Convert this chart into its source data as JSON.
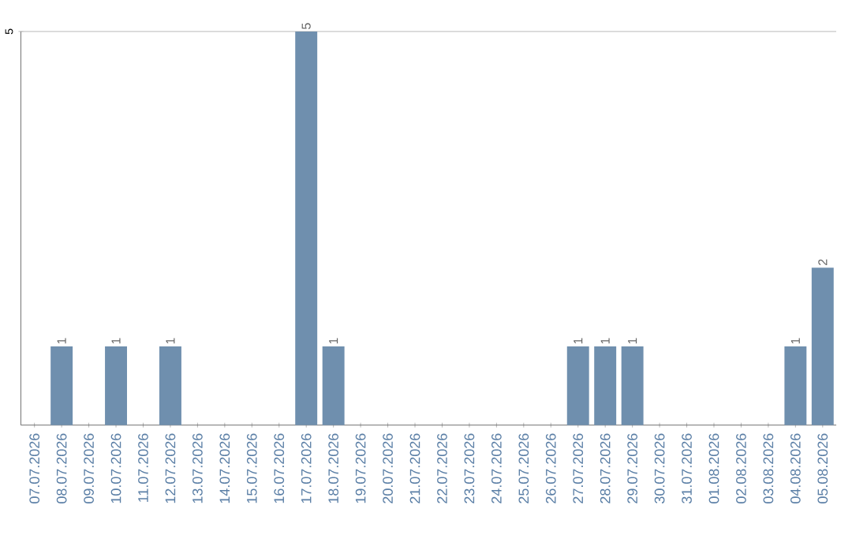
{
  "chart_data": {
    "type": "bar",
    "categories": [
      "07.07.2026",
      "08.07.2026",
      "09.07.2026",
      "10.07.2026",
      "11.07.2026",
      "12.07.2026",
      "13.07.2026",
      "14.07.2026",
      "15.07.2026",
      "16.07.2026",
      "17.07.2026",
      "18.07.2026",
      "19.07.2026",
      "20.07.2026",
      "21.07.2026",
      "22.07.2026",
      "23.07.2026",
      "24.07.2026",
      "25.07.2026",
      "26.07.2026",
      "27.07.2026",
      "28.07.2026",
      "29.07.2026",
      "30.07.2026",
      "31.07.2026",
      "01.08.2026",
      "02.08.2026",
      "03.08.2026",
      "04.08.2026",
      "05.08.2026"
    ],
    "values": [
      0,
      1,
      0,
      1,
      0,
      1,
      0,
      0,
      0,
      0,
      5,
      1,
      0,
      0,
      0,
      0,
      0,
      0,
      0,
      0,
      1,
      1,
      1,
      0,
      0,
      0,
      0,
      0,
      1,
      2
    ],
    "value_labels": [
      null,
      "1",
      null,
      "1",
      null,
      "1",
      null,
      null,
      null,
      null,
      "5",
      "1",
      null,
      null,
      null,
      null,
      null,
      null,
      null,
      null,
      "1",
      "1",
      "1",
      null,
      null,
      null,
      null,
      null,
      "1",
      "2"
    ],
    "color": "#6f8fae",
    "ylim": [
      0,
      5
    ],
    "yticks": [
      5
    ],
    "ref_lines": [
      {
        "axis": "y",
        "value": 5,
        "color": "#c8c8c8"
      }
    ]
  }
}
